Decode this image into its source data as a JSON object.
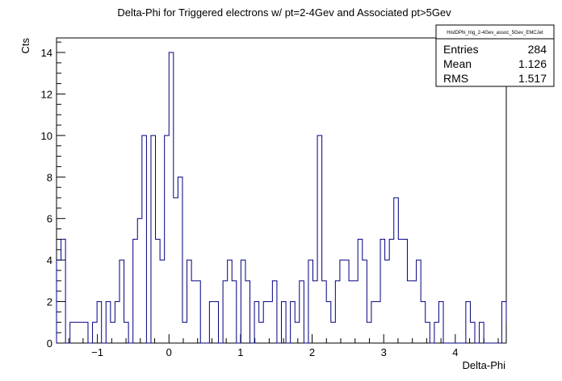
{
  "chart_data": {
    "type": "histogram",
    "title": "Delta-Phi for Triggered electrons w/ pt=2-4Gev and Associated pt>5Gev",
    "xlabel": "Delta-Phi",
    "ylabel": "Cts",
    "xlim": [
      -1.5708,
      4.7124
    ],
    "ylim": [
      0,
      14.7
    ],
    "bin_width": 0.0628318,
    "line_color": "#000080",
    "grid": false,
    "x_ticks": [
      "−1",
      "0",
      "1",
      "2",
      "3",
      "4"
    ],
    "y_ticks": [
      "0",
      "2",
      "4",
      "6",
      "8",
      "10",
      "12",
      "14"
    ],
    "values": [
      4,
      5,
      0,
      1,
      1,
      1,
      1,
      0,
      1,
      2,
      0,
      2,
      1,
      2,
      4,
      1,
      0,
      5,
      6,
      10,
      0,
      10,
      5,
      4,
      10,
      14,
      7,
      8,
      1,
      4,
      3,
      3,
      0,
      0,
      2,
      2,
      0,
      3,
      4,
      3,
      0,
      4,
      3,
      0,
      2,
      1,
      2,
      2,
      3,
      0,
      2,
      0,
      2,
      1,
      3,
      0,
      4,
      3,
      10,
      3,
      2,
      1,
      3,
      4,
      4,
      3,
      3,
      5,
      4,
      1,
      2,
      2,
      5,
      4,
      5,
      7,
      5,
      5,
      3,
      3,
      4,
      2,
      1,
      0,
      1,
      2,
      0,
      0,
      0,
      0,
      0,
      2,
      1,
      0,
      1,
      0,
      0,
      0,
      0,
      2,
      1
    ],
    "stats_box": {
      "name": "HistDPhi_trig_2-4Gev_assoc_5Gev_EMCJet",
      "rows": [
        {
          "label": "Entries",
          "value": "284"
        },
        {
          "label": "Mean",
          "value": "1.126"
        },
        {
          "label": "RMS",
          "value": "1.517"
        }
      ]
    }
  }
}
